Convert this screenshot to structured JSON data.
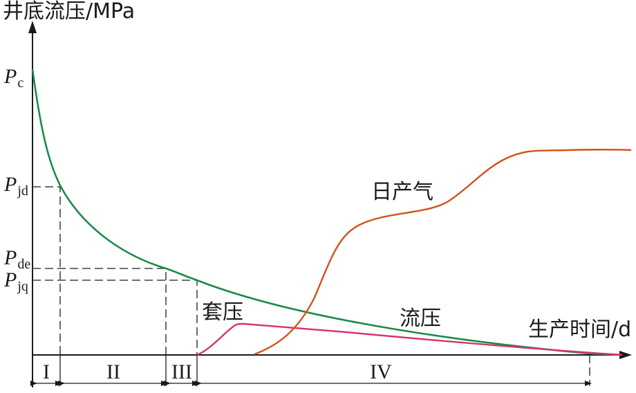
{
  "colors": {
    "flow_pressure": "#1b8a4a",
    "daily_gas": "#d2521a",
    "casing_pressure": "#d8336b",
    "axis": "#1a1a1a"
  },
  "axes": {
    "y_label": "井底流压/MPa",
    "x_label": "生产时间/d"
  },
  "pressure_levels": [
    {
      "id": "Pc",
      "symbol": "P",
      "sub": "c"
    },
    {
      "id": "Pjd",
      "symbol": "P",
      "sub": "jd"
    },
    {
      "id": "Pde",
      "symbol": "P",
      "sub": "de"
    },
    {
      "id": "Pjq",
      "symbol": "P",
      "sub": "jq"
    }
  ],
  "stages": [
    "I",
    "II",
    "III",
    "IV"
  ],
  "curves": {
    "flow_pressure": "流压",
    "daily_gas": "日产气",
    "casing_pressure": "套压"
  }
}
